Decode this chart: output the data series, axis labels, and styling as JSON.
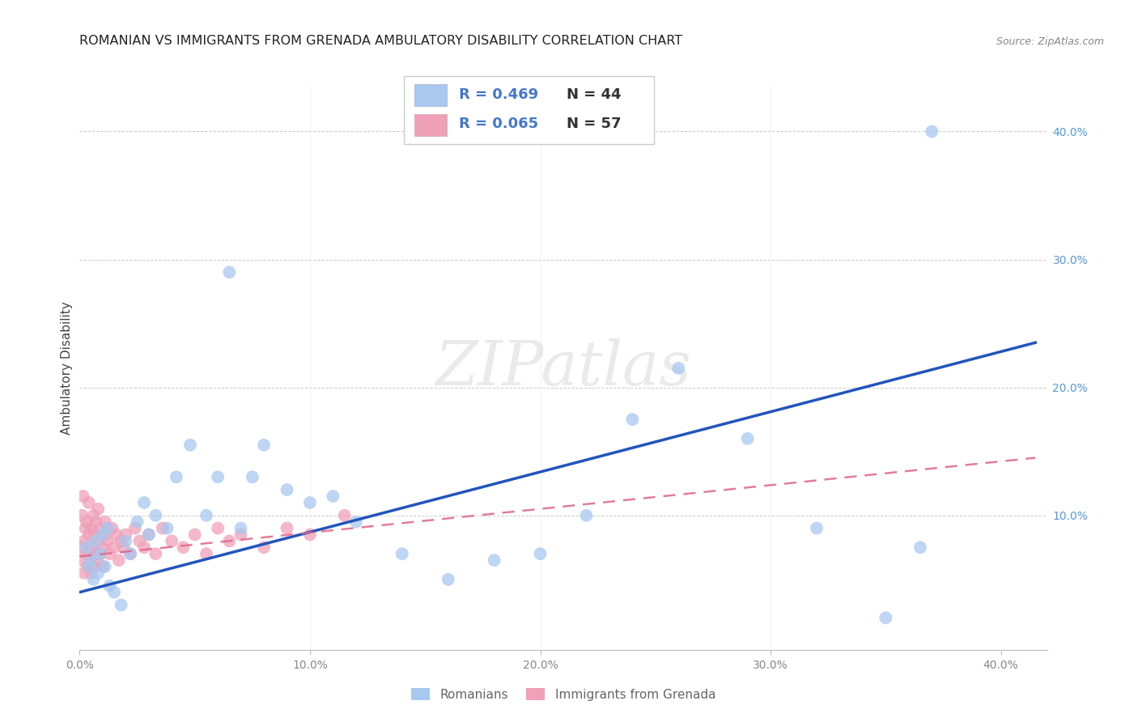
{
  "title": "ROMANIAN VS IMMIGRANTS FROM GRENADA AMBULATORY DISABILITY CORRELATION CHART",
  "source": "Source: ZipAtlas.com",
  "ylabel": "Ambulatory Disability",
  "xlim": [
    0.0,
    0.42
  ],
  "ylim": [
    -0.005,
    0.435
  ],
  "xticks": [
    0.0,
    0.1,
    0.2,
    0.3,
    0.4
  ],
  "yticks": [
    0.0,
    0.1,
    0.2,
    0.3,
    0.4
  ],
  "xticklabels": [
    "0.0%",
    "10.0%",
    "20.0%",
    "30.0%",
    "40.0%"
  ],
  "yticklabels": [
    "",
    "10.0%",
    "20.0%",
    "30.0%",
    "40.0%"
  ],
  "blue_color": "#A8C8F0",
  "pink_color": "#F0A0B8",
  "blue_line_color": "#2255BB",
  "pink_line_color": "#DD6688",
  "background_color": "#FFFFFF",
  "tick_color_y": "#5599DD",
  "tick_color_x": "#888888",
  "title_fontsize": 11.5,
  "tick_fontsize": 10,
  "watermark": "ZIPatlas",
  "legend_R1": "R = 0.469",
  "legend_N1": "N = 44",
  "legend_R2": "R = 0.065",
  "legend_N2": "N = 57",
  "rom_trend_x": [
    0.0,
    0.415
  ],
  "rom_trend_y": [
    0.04,
    0.235
  ],
  "gren_trend_x": [
    0.0,
    0.415
  ],
  "gren_trend_y": [
    0.068,
    0.145
  ],
  "romanian_x": [
    0.003,
    0.004,
    0.005,
    0.006,
    0.007,
    0.008,
    0.009,
    0.01,
    0.011,
    0.012,
    0.013,
    0.015,
    0.018,
    0.02,
    0.022,
    0.025,
    0.028,
    0.03,
    0.033,
    0.038,
    0.042,
    0.048,
    0.055,
    0.06,
    0.065,
    0.07,
    0.075,
    0.08,
    0.09,
    0.1,
    0.11,
    0.12,
    0.14,
    0.16,
    0.18,
    0.2,
    0.22,
    0.24,
    0.26,
    0.29,
    0.32,
    0.35,
    0.365,
    0.37
  ],
  "romanian_y": [
    0.075,
    0.06,
    0.065,
    0.05,
    0.08,
    0.055,
    0.07,
    0.085,
    0.06,
    0.09,
    0.045,
    0.04,
    0.03,
    0.08,
    0.07,
    0.095,
    0.11,
    0.085,
    0.1,
    0.09,
    0.13,
    0.155,
    0.1,
    0.13,
    0.29,
    0.09,
    0.13,
    0.155,
    0.12,
    0.11,
    0.115,
    0.095,
    0.07,
    0.05,
    0.065,
    0.07,
    0.1,
    0.175,
    0.215,
    0.16,
    0.09,
    0.02,
    0.075,
    0.4
  ],
  "grenada_x": [
    0.0005,
    0.001,
    0.001,
    0.0015,
    0.002,
    0.002,
    0.0025,
    0.003,
    0.003,
    0.0035,
    0.004,
    0.004,
    0.0045,
    0.005,
    0.005,
    0.0055,
    0.006,
    0.006,
    0.0065,
    0.007,
    0.007,
    0.0075,
    0.008,
    0.008,
    0.009,
    0.009,
    0.01,
    0.01,
    0.011,
    0.011,
    0.012,
    0.013,
    0.014,
    0.015,
    0.016,
    0.017,
    0.018,
    0.019,
    0.02,
    0.022,
    0.024,
    0.026,
    0.028,
    0.03,
    0.033,
    0.036,
    0.04,
    0.045,
    0.05,
    0.055,
    0.06,
    0.065,
    0.07,
    0.08,
    0.09,
    0.1,
    0.115
  ],
  "grenada_y": [
    0.065,
    0.1,
    0.075,
    0.115,
    0.08,
    0.055,
    0.09,
    0.07,
    0.095,
    0.06,
    0.085,
    0.11,
    0.07,
    0.055,
    0.09,
    0.075,
    0.1,
    0.06,
    0.085,
    0.07,
    0.095,
    0.065,
    0.08,
    0.105,
    0.07,
    0.09,
    0.075,
    0.06,
    0.085,
    0.095,
    0.08,
    0.07,
    0.09,
    0.075,
    0.085,
    0.065,
    0.08,
    0.075,
    0.085,
    0.07,
    0.09,
    0.08,
    0.075,
    0.085,
    0.07,
    0.09,
    0.08,
    0.075,
    0.085,
    0.07,
    0.09,
    0.08,
    0.085,
    0.075,
    0.09,
    0.085,
    0.1
  ]
}
